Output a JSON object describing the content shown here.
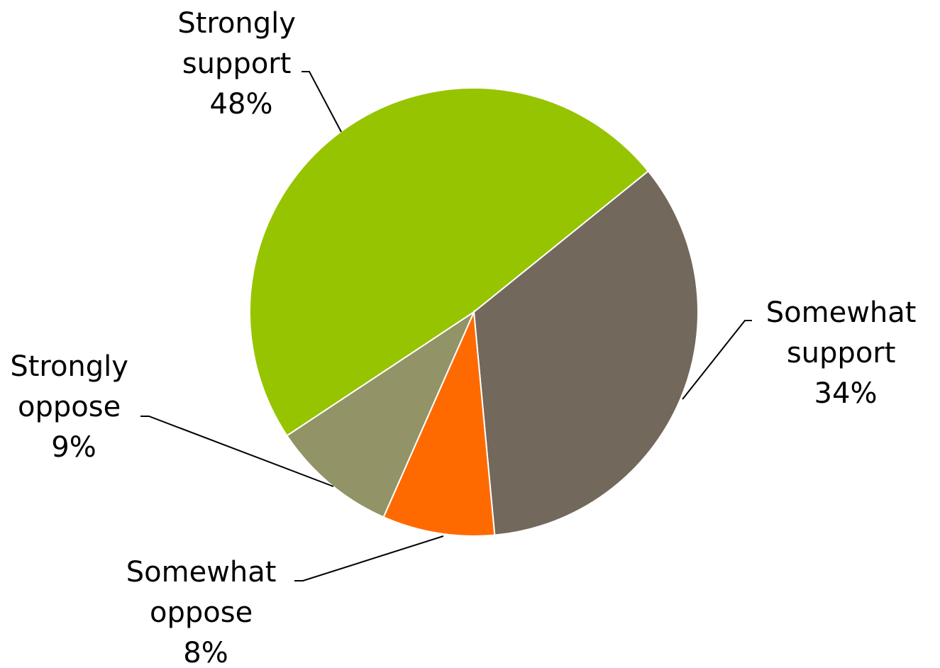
{
  "chart_data": {
    "type": "pie",
    "title": "",
    "start": "Strongly support, beginning at lower-left and running clockwise",
    "slices": [
      {
        "label": [
          "Strongly",
          "support",
          "48%"
        ],
        "value": 48,
        "color": "#96c400"
      },
      {
        "label": [
          "Somewhat",
          "support",
          "34%"
        ],
        "value": 34,
        "color": "#72685b"
      },
      {
        "label": [
          "Somewhat",
          "oppose",
          "8%"
        ],
        "value": 8,
        "color": "#ff6a00"
      },
      {
        "label": [
          "Strongly",
          "oppose",
          "9%"
        ],
        "value": 9,
        "color": "#929366"
      }
    ],
    "slice_border": "#ffffff",
    "legend": "none",
    "data_labels": "outside with leader lines"
  }
}
